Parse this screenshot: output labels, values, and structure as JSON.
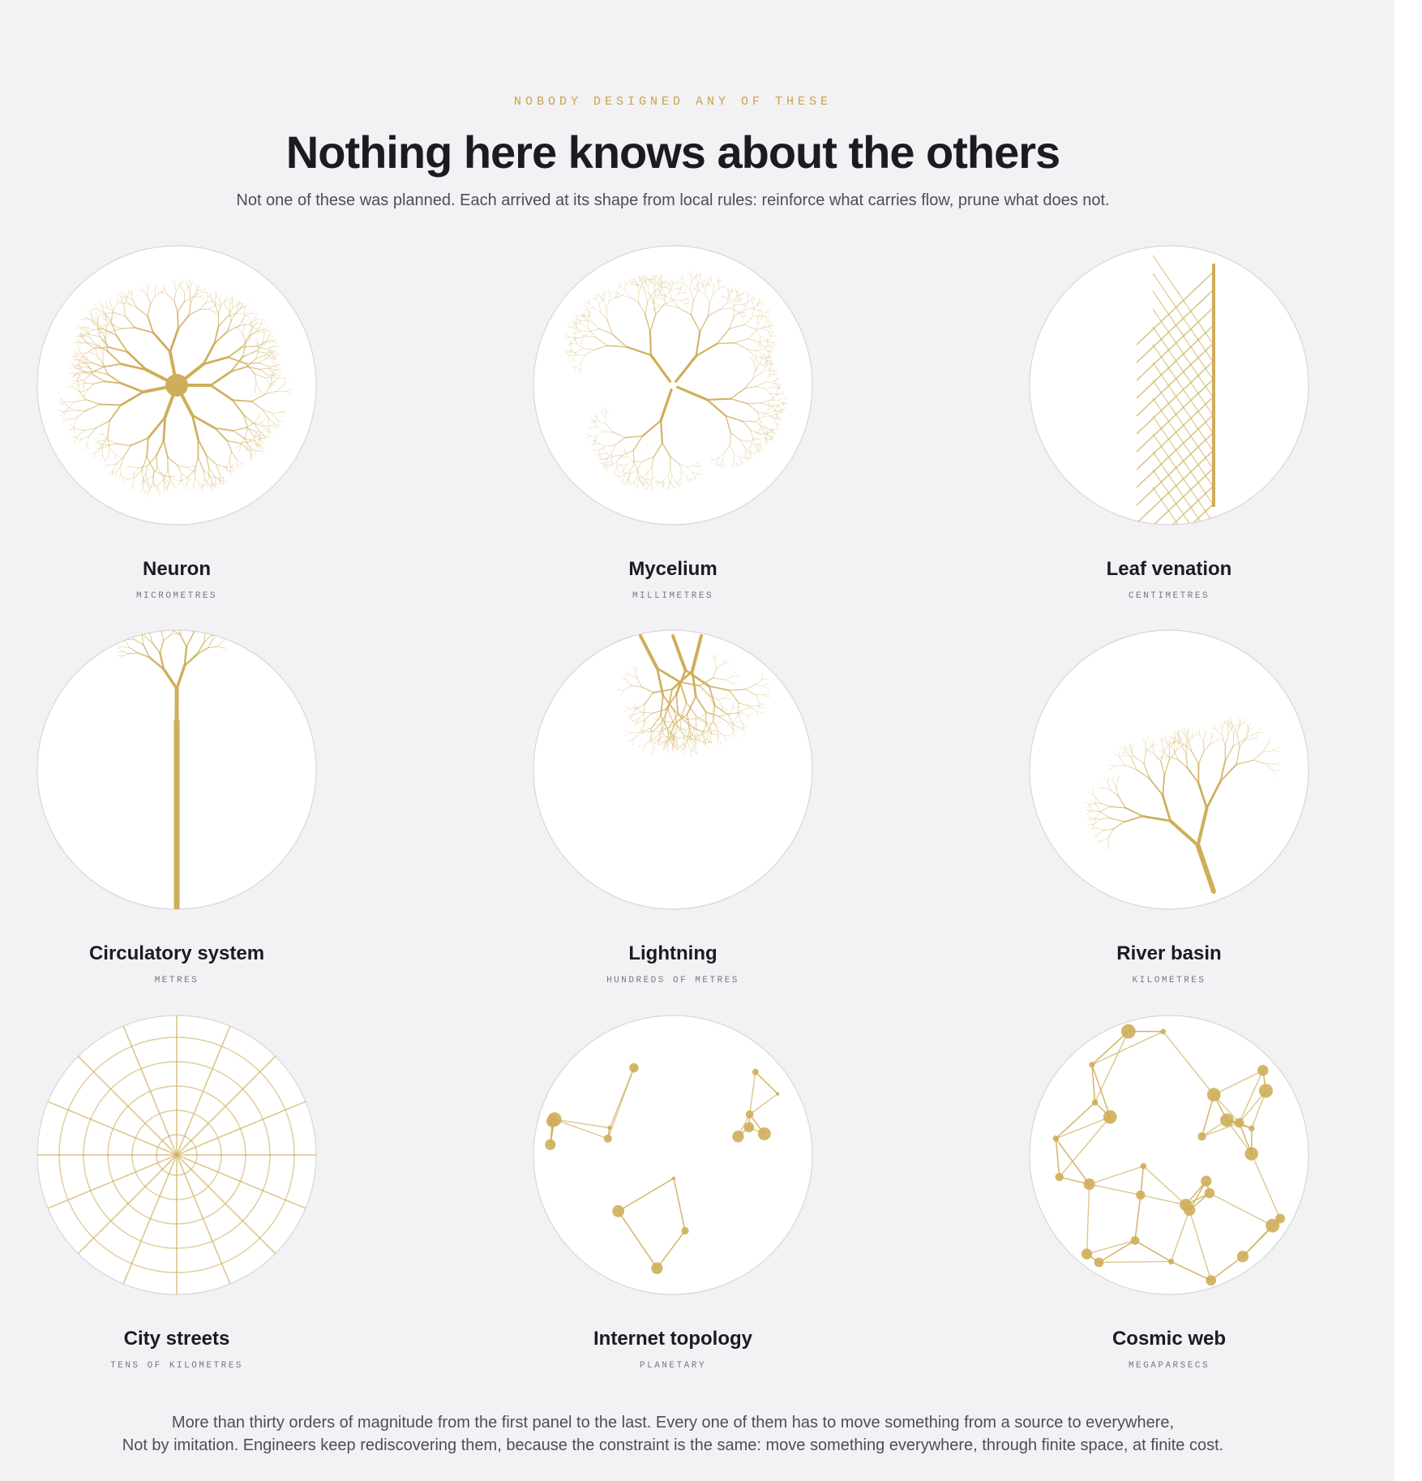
{
  "header": {
    "kicker": "NOBODY DESIGNED ANY OF THESE",
    "title": "Nothing here knows about the others",
    "subtitle": "Not one of these was planned. Each arrived at its shape from local rules: reinforce what carries flow, prune what does not."
  },
  "panels": [
    {
      "name": "Neuron",
      "scale": "MICROMETRES"
    },
    {
      "name": "Mycelium",
      "scale": "MILLIMETRES"
    },
    {
      "name": "Leaf venation",
      "scale": "CENTIMETRES"
    },
    {
      "name": "Circulatory system",
      "scale": "METRES"
    },
    {
      "name": "Lightning",
      "scale": "HUNDREDS OF METRES"
    },
    {
      "name": "River basin",
      "scale": "KILOMETRES"
    },
    {
      "name": "City streets",
      "scale": "TENS OF KILOMETRES"
    },
    {
      "name": "Internet topology",
      "scale": "PLANETARY"
    },
    {
      "name": "Cosmic web",
      "scale": "MEGAPARSECS"
    }
  ],
  "footer": {
    "lines": [
      "More than thirty orders of magnitude from the first panel to the last. Every one of them has to move something from a source to everywhere,",
      "Not by imitation. Engineers keep rediscovering them, because the constraint is the same: move something everywhere, through finite space, at finite cost."
    ]
  }
}
